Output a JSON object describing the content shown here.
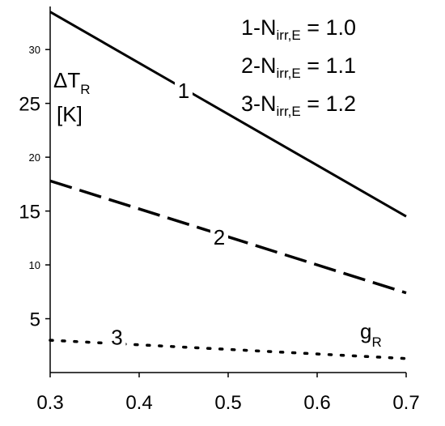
{
  "chart_data": {
    "type": "line",
    "title": "",
    "ylabel": {
      "main": "ΔT",
      "sub": "R",
      "unit": "[K]"
    },
    "xlabel": {
      "main": "g",
      "sub": "R"
    },
    "xlim": [
      0.3,
      0.7
    ],
    "ylim": [
      0,
      34
    ],
    "x_ticks": [
      {
        "value": 0.3,
        "label": "0.3"
      },
      {
        "value": 0.4,
        "label": "0.4"
      },
      {
        "value": 0.5,
        "label": "0.5"
      },
      {
        "value": 0.6,
        "label": "0.6"
      },
      {
        "value": 0.7,
        "label": "0.7"
      }
    ],
    "y_ticks": [
      {
        "value": 5,
        "label": "5",
        "size": "big"
      },
      {
        "value": 10,
        "label": "10",
        "size": "small"
      },
      {
        "value": 15,
        "label": "15",
        "size": "big"
      },
      {
        "value": 20,
        "label": "20",
        "size": "small"
      },
      {
        "value": 25,
        "label": "25",
        "size": "big"
      },
      {
        "value": 30,
        "label": "30",
        "size": "small"
      }
    ],
    "grid": false,
    "legend_position": "top-right",
    "legend": [
      {
        "prefix": "1-N",
        "sub": "irr,E",
        "suffix": " = 1.0"
      },
      {
        "prefix": "2-N",
        "sub": "irr,E",
        "suffix": " = 1.1"
      },
      {
        "prefix": "3-N",
        "sub": "irr,E",
        "suffix": " = 1.2"
      }
    ],
    "series": [
      {
        "label": "1",
        "style": "solid",
        "x": [
          0.3,
          0.7
        ],
        "y": [
          33.5,
          14.5
        ],
        "label_at": [
          0.45,
          25.5
        ]
      },
      {
        "label": "2",
        "style": "dashed",
        "x": [
          0.3,
          0.7
        ],
        "y": [
          17.8,
          7.4
        ],
        "label_at": [
          0.49,
          11.9
        ]
      },
      {
        "label": "3",
        "style": "dotted",
        "x": [
          0.3,
          0.7
        ],
        "y": [
          3.0,
          1.3
        ],
        "label_at": [
          0.375,
          2.6
        ]
      }
    ]
  }
}
